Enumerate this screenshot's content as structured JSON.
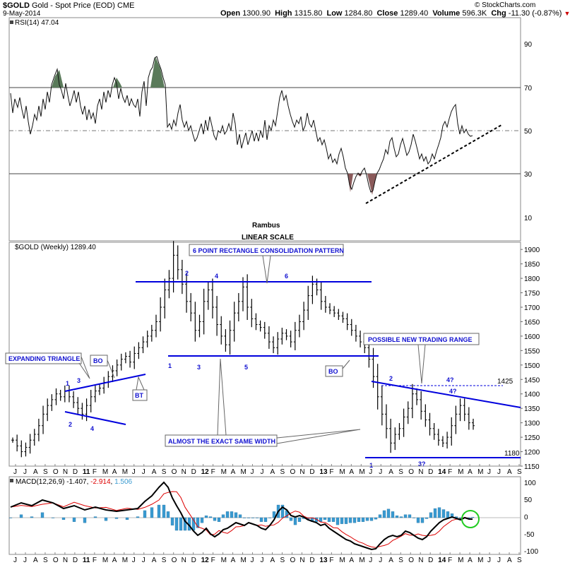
{
  "header": {
    "symbol": "$GOLD",
    "name": "Gold - Spot Price (EOD)",
    "exchange": "CME",
    "date": "9-May-2014",
    "open_label": "Open",
    "open": "1300.90",
    "high_label": "High",
    "high": "1315.80",
    "low_label": "Low",
    "low": "1284.80",
    "close_label": "Close",
    "close": "1289.40",
    "volume_label": "Volume",
    "volume": "596.3K",
    "chg_label": "Chg",
    "chg": "-11.30 (-0.87%)",
    "watermark": "© StockCharts.com"
  },
  "colors": {
    "price_bars": "#000000",
    "annotation_blue": "#0000dd",
    "rsi_overbought_fill": "#5a7a5a",
    "rsi_oversold_fill": "#8a5a5a",
    "macd_signal": "#dd0000",
    "histogram": "#3a9ad0",
    "highlight_circle": "#22cc22"
  },
  "rsi_panel": {
    "legend": "RSI(14) 47.04",
    "author": "Rambus",
    "scale_note": "LINEAR SCALE",
    "levels": [
      "90",
      "70",
      "50",
      "30",
      "10"
    ]
  },
  "price_panel": {
    "legend": "$GOLD (Weekly) 1289.40",
    "y_ticks": [
      "1900",
      "1850",
      "1800",
      "1750",
      "1700",
      "1650",
      "1600",
      "1550",
      "1500",
      "1450",
      "1400",
      "1350",
      "1300",
      "1250",
      "1200",
      "1150"
    ],
    "annotations": {
      "rectangle": "6 POINT RECTANGLE CONSOLIDATION PATTERN",
      "new_range": "POSSIBLE NEW TRADING RANGE",
      "expanding": "EXPANDING TRIANGLE",
      "same_width": "ALMOST THE EXACT SAME WIDTH",
      "bo1": "BO",
      "bo2": "BO",
      "bt": "BT",
      "level_1425": "1425",
      "level_1180": "1180"
    },
    "points": {
      "rect_top_2": "2",
      "rect_top_4": "4",
      "rect_top_6": "6",
      "rect_bot_1": "1",
      "rect_bot_3": "3",
      "rect_bot_5": "5",
      "tri_1": "1",
      "tri_2": "2",
      "tri_3": "3",
      "tri_4": "4",
      "new_1": "1",
      "new_2": "2",
      "new_3q": "3?",
      "new_4q_a": "4?",
      "new_4q_b": "4?"
    }
  },
  "macd_panel": {
    "label": "MACD(12,26,9)",
    "macd": "-1.407",
    "signal": "-2.914",
    "hist": "1.506",
    "y_ticks": [
      "100",
      "50",
      "0",
      "-50",
      "-100"
    ]
  },
  "x_axis": {
    "price_months": [
      "J",
      "J",
      "A",
      "S",
      "O",
      "N",
      "D",
      "11",
      "F",
      "M",
      "A",
      "M",
      "J",
      "J",
      "A",
      "S",
      "O",
      "N",
      "D",
      "12",
      "F",
      "M",
      "A",
      "M",
      "J",
      "J",
      "A",
      "S",
      "O",
      "N",
      "D",
      "13",
      "F",
      "M",
      "A",
      "M",
      "J",
      "J",
      "A",
      "S",
      "O",
      "N",
      "D",
      "14",
      "F",
      "M",
      "A",
      "M",
      "J",
      "J",
      "A",
      "S"
    ],
    "macd_months": [
      "J",
      "J",
      "A",
      "S",
      "O",
      "N",
      "D",
      "11",
      "F",
      "M",
      "A",
      "M",
      "J",
      "J",
      "A",
      "S",
      "O",
      "N",
      "D",
      "12",
      "F",
      "M",
      "A",
      "M",
      "J",
      "J",
      "A",
      "S",
      "O",
      "N",
      "D",
      "13",
      "F",
      "M",
      "A",
      "M",
      "J",
      "J",
      "A",
      "S",
      "O",
      "N",
      "D",
      "14",
      "F",
      "M",
      "A",
      "M",
      "J",
      "J",
      "A",
      "S"
    ]
  },
  "chart_data": {
    "type": "line",
    "title": "$GOLD Gold - Spot Price (EOD) CME",
    "x_axis_range": [
      "2010-06",
      "2014-09"
    ],
    "price": {
      "name": "$GOLD (Weekly)",
      "ylim": [
        1150,
        1920
      ],
      "weekly_close": [
        1240,
        1220,
        1200,
        1215,
        1240,
        1260,
        1290,
        1330,
        1360,
        1380,
        1400,
        1390,
        1410,
        1390,
        1370,
        1350,
        1330,
        1360,
        1390,
        1410,
        1420,
        1440,
        1460,
        1480,
        1500,
        1520,
        1530,
        1510,
        1540,
        1560,
        1580,
        1600,
        1620,
        1650,
        1700,
        1760,
        1800,
        1880,
        1830,
        1780,
        1720,
        1680,
        1620,
        1650,
        1720,
        1760,
        1700,
        1640,
        1600,
        1570,
        1620,
        1680,
        1720,
        1770,
        1700,
        1660,
        1640,
        1630,
        1610,
        1580,
        1560,
        1590,
        1610,
        1600,
        1580,
        1620,
        1650,
        1690,
        1740,
        1780,
        1760,
        1720,
        1700,
        1690,
        1680,
        1670,
        1660,
        1640,
        1620,
        1600,
        1580,
        1560,
        1520,
        1460,
        1390,
        1330,
        1280,
        1230,
        1260,
        1280,
        1320,
        1350,
        1400,
        1380,
        1340,
        1310,
        1280,
        1260,
        1240,
        1230,
        1250,
        1290,
        1330,
        1360,
        1330,
        1300,
        1290
      ]
    },
    "rsi": {
      "name": "RSI(14)",
      "ylim": [
        0,
        100
      ],
      "levels": [
        70,
        50,
        30
      ],
      "last": 47.04
    },
    "macd": {
      "name": "MACD(12,26,9)",
      "ylim": [
        -110,
        110
      ],
      "macd": -1.407,
      "signal": -2.914,
      "histogram": 1.506
    }
  }
}
